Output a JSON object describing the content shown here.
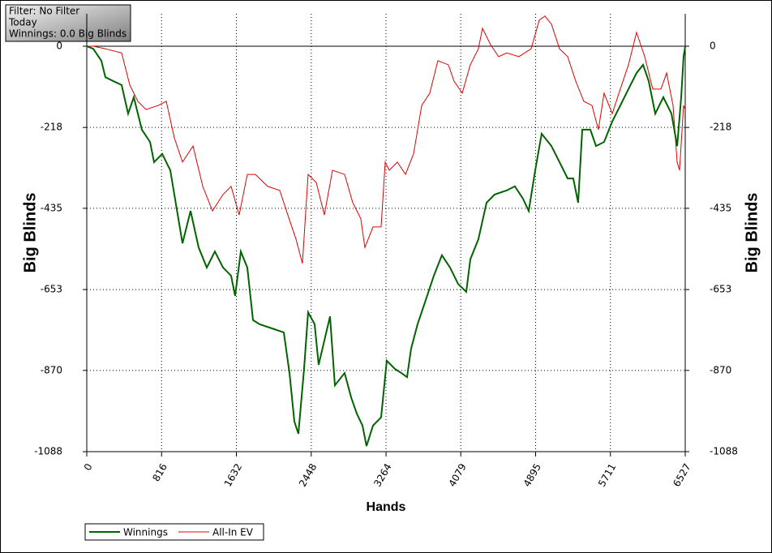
{
  "chart_data": {
    "type": "line",
    "info_box": [
      "Filter: No Filter",
      "Today",
      "Winnings: 0.0 Big Blinds"
    ],
    "xlabel": "Hands",
    "ylabel": "Big Blinds",
    "xlim": [
      0,
      6527
    ],
    "xticks": [
      0,
      816,
      1632,
      2448,
      3264,
      4079,
      4895,
      5711,
      6527
    ],
    "ylim": [
      -1088,
      87
    ],
    "yticks": [
      0,
      -218,
      -435,
      -653,
      -870,
      -1088
    ],
    "grid": true,
    "legend": "bottom-left",
    "series": [
      {
        "name": "Winnings",
        "color": "#006400",
        "x": [
          0,
          71,
          159,
          203,
          292,
          380,
          451,
          513,
          601,
          690,
          734,
          823,
          911,
          955,
          1044,
          1132,
          1220,
          1309,
          1397,
          1486,
          1574,
          1618,
          1680,
          1751,
          1813,
          1884,
          2016,
          2149,
          2211,
          2264,
          2308,
          2370,
          2414,
          2485,
          2529,
          2591,
          2653,
          2706,
          2812,
          2883,
          2945,
          3007,
          3051,
          3122,
          3210,
          3272,
          3361,
          3431,
          3493,
          3537,
          3608,
          3697,
          3785,
          3873,
          3962,
          4050,
          4139,
          4183,
          4271,
          4360,
          4448,
          4580,
          4669,
          4757,
          4820,
          4891,
          4961,
          5068,
          5156,
          5245,
          5306,
          5359,
          5404,
          5492,
          5554,
          5642,
          5731,
          5819,
          5908,
          5996,
          6067,
          6129,
          6200,
          6288,
          6377,
          6439,
          6483,
          6509,
          6527
        ],
        "values": [
          0,
          -7,
          -39,
          -83,
          -94,
          -104,
          -181,
          -137,
          -224,
          -257,
          -311,
          -289,
          -333,
          -398,
          -529,
          -442,
          -540,
          -594,
          -551,
          -594,
          -616,
          -670,
          -551,
          -594,
          -735,
          -746,
          -757,
          -768,
          -877,
          -1007,
          -1040,
          -866,
          -714,
          -746,
          -855,
          -790,
          -725,
          -910,
          -877,
          -942,
          -986,
          -1018,
          -1073,
          -1018,
          -996,
          -844,
          -866,
          -877,
          -888,
          -812,
          -746,
          -681,
          -616,
          -561,
          -594,
          -638,
          -659,
          -572,
          -518,
          -420,
          -398,
          -387,
          -376,
          -409,
          -442,
          -333,
          -235,
          -268,
          -311,
          -355,
          -355,
          -420,
          -224,
          -224,
          -268,
          -257,
          -202,
          -159,
          -115,
          -72,
          -50,
          -94,
          -181,
          -137,
          -181,
          -268,
          -137,
          -28,
          0
        ]
      },
      {
        "name": "All-In EV",
        "color": "#e00000",
        "x": [
          0,
          71,
          203,
          380,
          469,
          557,
          646,
          778,
          867,
          955,
          1044,
          1159,
          1265,
          1371,
          1486,
          1574,
          1662,
          1751,
          1839,
          1972,
          2105,
          2193,
          2282,
          2352,
          2414,
          2503,
          2591,
          2680,
          2812,
          2901,
          2989,
          3033,
          3122,
          3210,
          3255,
          3299,
          3387,
          3476,
          3564,
          3653,
          3741,
          3829,
          3944,
          4006,
          4095,
          4183,
          4271,
          4316,
          4404,
          4492,
          4580,
          4713,
          4846,
          4935,
          4997,
          5068,
          5156,
          5245,
          5333,
          5421,
          5510,
          5580,
          5642,
          5731,
          5819,
          5908,
          5996,
          6085,
          6173,
          6262,
          6324,
          6394,
          6439,
          6465,
          6509,
          6527
        ],
        "values": [
          0,
          0,
          -7,
          -18,
          -104,
          -148,
          -170,
          -159,
          -148,
          -246,
          -311,
          -268,
          -376,
          -442,
          -398,
          -376,
          -453,
          -344,
          -344,
          -376,
          -387,
          -453,
          -518,
          -583,
          -344,
          -366,
          -453,
          -333,
          -344,
          -420,
          -463,
          -540,
          -485,
          -485,
          -311,
          -333,
          -311,
          -344,
          -289,
          -159,
          -126,
          -39,
          -50,
          -94,
          -126,
          -50,
          -7,
          48,
          4,
          -28,
          -18,
          -28,
          -7,
          70,
          81,
          59,
          -7,
          -28,
          -94,
          -148,
          -159,
          -224,
          -126,
          -181,
          -115,
          -50,
          37,
          -28,
          -115,
          -115,
          -72,
          -159,
          -311,
          -333,
          -159,
          -170
        ]
      }
    ]
  }
}
